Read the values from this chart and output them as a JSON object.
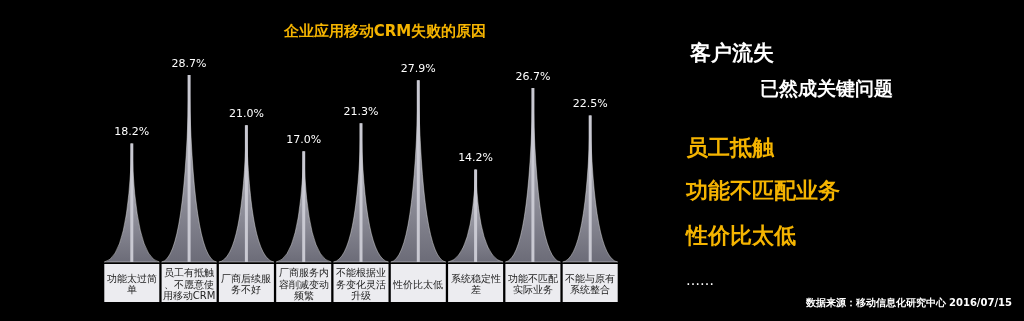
{
  "chart_data": {
    "type": "bar",
    "title": "企业应用移动CRM失败的原因",
    "categories": [
      "功能太过简单",
      "员工有抵触、不愿意使用移动CRM",
      "厂商后续服务不好",
      "厂商服务内容削减变动频繁",
      "不能根据业务变化灵活升级",
      "性价比太低",
      "系统稳定性差",
      "功能不匹配实际业务",
      "不能与原有系统整合"
    ],
    "values": [
      18.2,
      28.7,
      21.0,
      17.0,
      21.3,
      27.9,
      14.2,
      26.7,
      22.5
    ],
    "value_labels": [
      "18.2%",
      "28.7%",
      "21.0%",
      "17.0%",
      "21.3%",
      "27.9%",
      "14.2%",
      "26.7%",
      "22.5%"
    ],
    "color": "#c9c9d2",
    "annotations": [
      "客户流失",
      "已然成关键问题",
      "员工抵触",
      "功能不匹配业务",
      "性价比太低",
      "……",
      "数据来源：移动信息化研究中心 2016/07/15"
    ]
  }
}
